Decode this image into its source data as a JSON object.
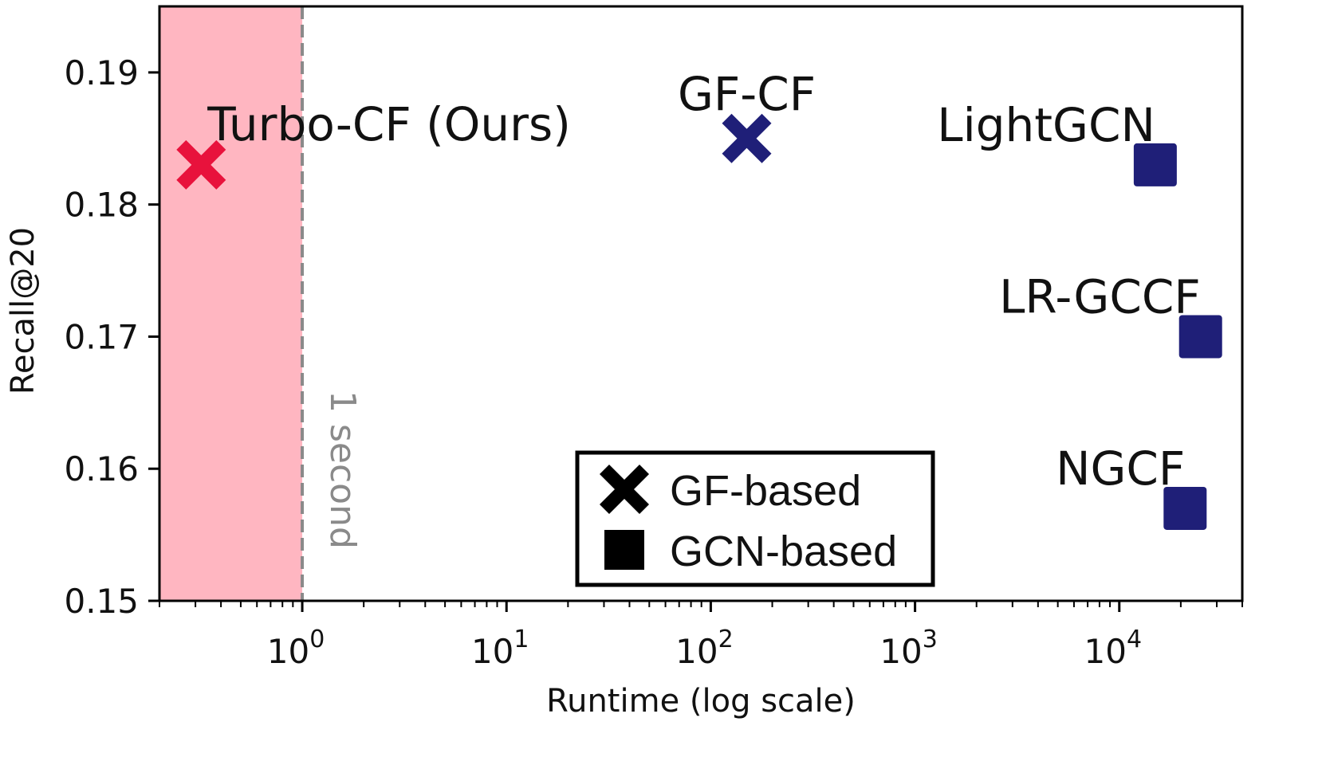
{
  "chart_data": {
    "type": "scatter",
    "xlabel": "Runtime (log scale)",
    "ylabel": "Recall@20",
    "xscale": "log",
    "xlim": [
      0.2,
      40000
    ],
    "ylim": [
      0.15,
      0.195
    ],
    "x_ticks": [
      {
        "value": 1,
        "base": "10",
        "exp": "0"
      },
      {
        "value": 10,
        "base": "10",
        "exp": "1"
      },
      {
        "value": 100,
        "base": "10",
        "exp": "2"
      },
      {
        "value": 1000,
        "base": "10",
        "exp": "3"
      },
      {
        "value": 10000,
        "base": "10",
        "exp": "4"
      }
    ],
    "y_ticks": [
      {
        "value": 0.15,
        "label": "0.15"
      },
      {
        "value": 0.16,
        "label": "0.16"
      },
      {
        "value": 0.17,
        "label": "0.17"
      },
      {
        "value": 0.18,
        "label": "0.18"
      },
      {
        "value": 0.19,
        "label": "0.19"
      }
    ],
    "shaded_region": {
      "x_from": 0.2,
      "x_to": 1,
      "color": "#ffb6c1"
    },
    "threshold_line": {
      "x": 1,
      "label": "1 second",
      "color": "#8a8a8a"
    },
    "points": [
      {
        "name": "Turbo-CF (Ours)",
        "x": 0.32,
        "y": 0.183,
        "marker": "x",
        "color": "#e8123c",
        "label_pos": "top-right"
      },
      {
        "name": "GF-CF",
        "x": 150,
        "y": 0.185,
        "marker": "x",
        "color": "#1f1f78",
        "label_pos": "top"
      },
      {
        "name": "LightGCN",
        "x": 15000,
        "y": 0.183,
        "marker": "square",
        "color": "#1f1f78",
        "label_pos": "top-left"
      },
      {
        "name": "LR-GCCF",
        "x": 25000,
        "y": 0.17,
        "marker": "square",
        "color": "#1f1f78",
        "label_pos": "top-left"
      },
      {
        "name": "NGCF",
        "x": 21000,
        "y": 0.157,
        "marker": "square",
        "color": "#1f1f78",
        "label_pos": "top-left"
      }
    ],
    "legend": {
      "position": "lower-center",
      "entries": [
        {
          "label": "GF-based",
          "marker": "x",
          "color": "#000000"
        },
        {
          "label": "GCN-based",
          "marker": "square",
          "color": "#000000"
        }
      ]
    }
  }
}
